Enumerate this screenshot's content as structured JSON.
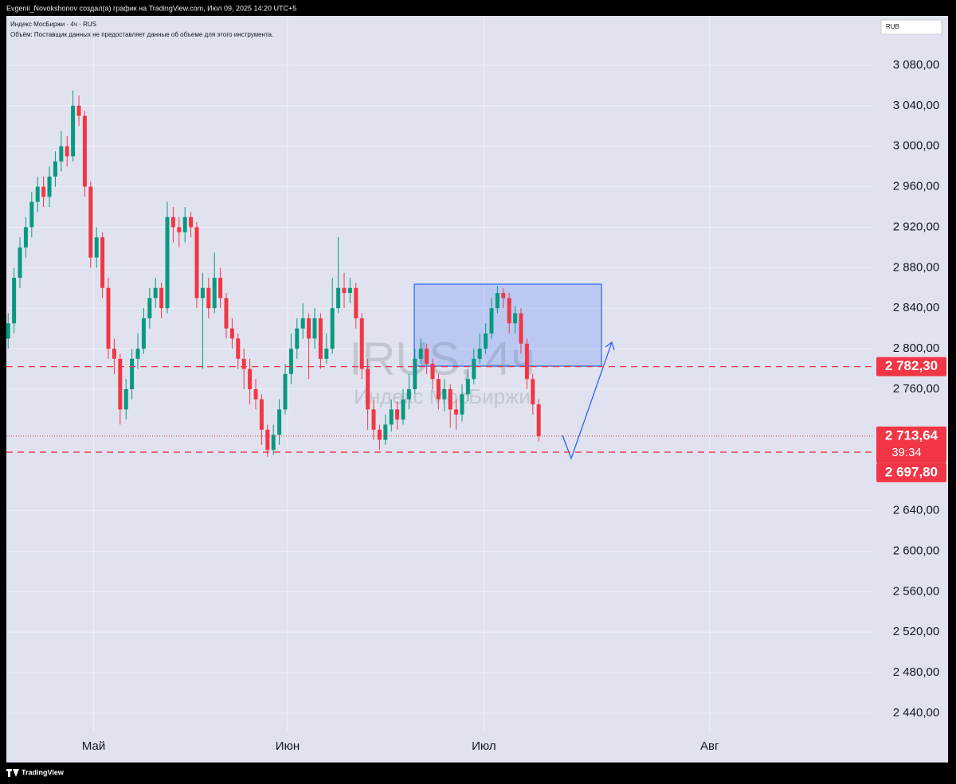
{
  "chart_data": {
    "type": "candlestick",
    "header": "Evgenii_Novokshonov создал(а) график на TradingView.com, Июл 09, 2025 14:20 UTC+5",
    "symbol_line": "Индекс МосБиржи · 4ч · RUS",
    "volume_note": "Объём: Поставщик данных не предоставляет данные об объеме для этого инструмента.",
    "currency": "RUB",
    "watermark": "IRUS, 4ч",
    "watermark_name": "Индекс МосБиржи",
    "footer": "TradingView",
    "up_color": "#089981",
    "down_color": "#f23645",
    "x": [
      0,
      1,
      2,
      3,
      4,
      5,
      6,
      7,
      8,
      9,
      10,
      11,
      12,
      13,
      14,
      15,
      16,
      17,
      18,
      19,
      20,
      21,
      22,
      23,
      24,
      25,
      26,
      27,
      28,
      29,
      30,
      31,
      32,
      33,
      34,
      35,
      36,
      37,
      38,
      39,
      40,
      41,
      42,
      43,
      44,
      45,
      46,
      47,
      48,
      49,
      50,
      51,
      52,
      53,
      54,
      55,
      56,
      57,
      58,
      59,
      60,
      61,
      62,
      63,
      64,
      65,
      66,
      67,
      68,
      69,
      70,
      71,
      72,
      73,
      74,
      75,
      76,
      77,
      78,
      79,
      80,
      81,
      82,
      83,
      84,
      85,
      86,
      87,
      88,
      89,
      90
    ],
    "open": [
      2810,
      2825,
      2870,
      2900,
      2920,
      2945,
      2960,
      2950,
      2970,
      2985,
      3000,
      2990,
      3040,
      3030,
      2960,
      2890,
      2910,
      2860,
      2800,
      2790,
      2740,
      2760,
      2790,
      2800,
      2830,
      2850,
      2860,
      2840,
      2930,
      2920,
      2915,
      2930,
      2920,
      2850,
      2860,
      2840,
      2870,
      2850,
      2820,
      2810,
      2790,
      2780,
      2760,
      2750,
      2720,
      2700,
      2715,
      2740,
      2775,
      2800,
      2820,
      2830,
      2810,
      2830,
      2790,
      2800,
      2840,
      2860,
      2855,
      2860,
      2830,
      2780,
      2740,
      2720,
      2710,
      2725,
      2740,
      2730,
      2750,
      2760,
      2790,
      2800,
      2785,
      2770,
      2750,
      2760,
      2740,
      2735,
      2755,
      2770,
      2790,
      2800,
      2815,
      2840,
      2855,
      2850,
      2825,
      2835,
      2805,
      2770,
      2745
    ],
    "high": [
      2835,
      2880,
      2910,
      2930,
      2955,
      2970,
      2970,
      2980,
      2995,
      3015,
      3010,
      3055,
      3050,
      3035,
      2965,
      2920,
      2915,
      2870,
      2810,
      2795,
      2770,
      2800,
      2815,
      2840,
      2860,
      2870,
      2865,
      2945,
      2940,
      2930,
      2940,
      2935,
      2925,
      2875,
      2870,
      2895,
      2880,
      2855,
      2830,
      2815,
      2800,
      2790,
      2770,
      2755,
      2725,
      2725,
      2750,
      2785,
      2815,
      2830,
      2845,
      2835,
      2840,
      2835,
      2815,
      2870,
      2910,
      2875,
      2870,
      2865,
      2835,
      2790,
      2750,
      2725,
      2735,
      2750,
      2748,
      2760,
      2775,
      2800,
      2810,
      2805,
      2790,
      2775,
      2770,
      2765,
      2750,
      2765,
      2780,
      2800,
      2815,
      2825,
      2850,
      2862,
      2860,
      2855,
      2842,
      2840,
      2810,
      2775,
      2750
    ],
    "low": [
      2800,
      2815,
      2860,
      2890,
      2910,
      2935,
      2940,
      2940,
      2960,
      2975,
      2980,
      2985,
      3020,
      2950,
      2880,
      2880,
      2850,
      2790,
      2775,
      2725,
      2730,
      2750,
      2780,
      2795,
      2820,
      2840,
      2830,
      2835,
      2905,
      2900,
      2905,
      2910,
      2840,
      2780,
      2830,
      2835,
      2840,
      2810,
      2800,
      2780,
      2760,
      2745,
      2740,
      2705,
      2693,
      2695,
      2705,
      2735,
      2765,
      2790,
      2810,
      2770,
      2800,
      2780,
      2785,
      2795,
      2835,
      2840,
      2845,
      2820,
      2770,
      2720,
      2710,
      2700,
      2705,
      2718,
      2720,
      2725,
      2740,
      2755,
      2785,
      2775,
      2760,
      2740,
      2738,
      2722,
      2720,
      2728,
      2748,
      2765,
      2785,
      2795,
      2810,
      2835,
      2840,
      2815,
      2815,
      2795,
      2760,
      2735,
      2708
    ],
    "close": [
      2825,
      2870,
      2900,
      2920,
      2945,
      2960,
      2950,
      2970,
      2985,
      3000,
      2990,
      3040,
      3030,
      2960,
      2890,
      2910,
      2860,
      2800,
      2790,
      2740,
      2760,
      2790,
      2800,
      2830,
      2850,
      2860,
      2840,
      2930,
      2920,
      2915,
      2930,
      2920,
      2850,
      2860,
      2840,
      2870,
      2850,
      2820,
      2810,
      2790,
      2780,
      2760,
      2750,
      2720,
      2700,
      2715,
      2740,
      2775,
      2800,
      2820,
      2830,
      2810,
      2830,
      2790,
      2800,
      2840,
      2860,
      2855,
      2860,
      2830,
      2780,
      2740,
      2720,
      2710,
      2725,
      2740,
      2730,
      2750,
      2760,
      2790,
      2800,
      2785,
      2770,
      2750,
      2760,
      2740,
      2735,
      2755,
      2770,
      2790,
      2800,
      2815,
      2840,
      2855,
      2850,
      2825,
      2835,
      2805,
      2770,
      2745,
      2713.64
    ],
    "xlim": [
      -0.3,
      146.6
    ],
    "xticks": [
      {
        "value": 14.5,
        "label": "Май"
      },
      {
        "value": 47.4,
        "label": "Июн"
      },
      {
        "value": 80.7,
        "label": "Июл"
      },
      {
        "value": 119,
        "label": "Авг"
      }
    ],
    "ylim": [
      2421.1,
      3128.7
    ],
    "yticks": [
      {
        "value": 3080,
        "label": "3 080,00"
      },
      {
        "value": 3040,
        "label": "3 040,00"
      },
      {
        "value": 3000,
        "label": "3 000,00"
      },
      {
        "value": 2960,
        "label": "2 960,00"
      },
      {
        "value": 2920,
        "label": "2 920,00"
      },
      {
        "value": 2880,
        "label": "2 880,00"
      },
      {
        "value": 2840,
        "label": "2 840,00"
      },
      {
        "value": 2800,
        "label": "2 800,00"
      },
      {
        "value": 2760,
        "label": "2 760,00"
      },
      {
        "value": 2640,
        "label": "2 640,00"
      },
      {
        "value": 2600,
        "label": "2 600,00"
      },
      {
        "value": 2560,
        "label": "2 560,00"
      },
      {
        "value": 2520,
        "label": "2 520,00"
      },
      {
        "value": 2480,
        "label": "2 480,00"
      },
      {
        "value": 2440,
        "label": "2 440,00"
      }
    ],
    "grid": true,
    "level_color": "#f23645",
    "levels": [
      {
        "value": 2782.3,
        "label": "2 782,30"
      },
      {
        "value": 2697.8,
        "label": "2 697,80"
      }
    ],
    "last": {
      "value": 2713.64,
      "label": "2 713,64",
      "countdown": "39:34"
    }
  }
}
